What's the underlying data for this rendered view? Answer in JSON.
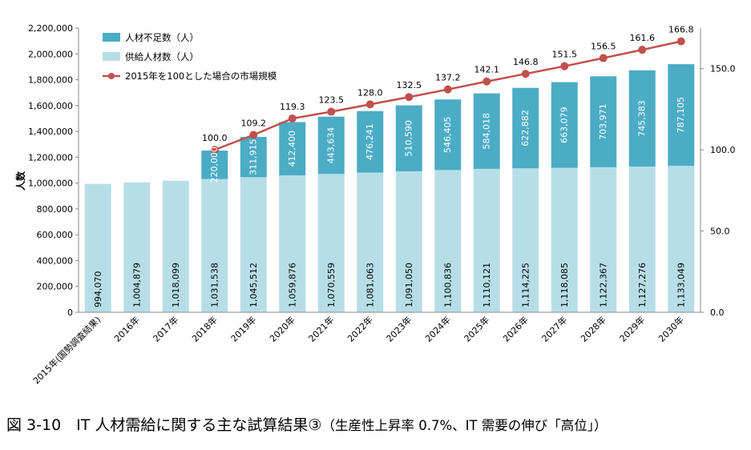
{
  "caption": {
    "main": "図 3-10　IT 人材需給に関する主な試算結果③",
    "sub": "（生産性上昇率 0.7%、IT 需要の伸び「高位」）"
  },
  "chart_data": {
    "type": "bar",
    "stacked": true,
    "categories": [
      "2015年(国勢調査結果)",
      "2016年",
      "2017年",
      "2018年",
      "2019年",
      "2020年",
      "2021年",
      "2022年",
      "2023年",
      "2024年",
      "2025年",
      "2026年",
      "2027年",
      "2028年",
      "2029年",
      "2030年"
    ],
    "ylabel": "人数",
    "ylim": [
      0,
      2200000
    ],
    "y_ticks": [
      "0",
      "200,000",
      "400,000",
      "600,000",
      "800,000",
      "1,000,000",
      "1,200,000",
      "1,400,000",
      "1,600,000",
      "1,800,000",
      "2,000,000",
      "2,200,000"
    ],
    "y2lim": [
      0,
      175
    ],
    "y2_ticks": [
      "0.0",
      "50.0",
      "100.0",
      "150.0"
    ],
    "legend_position": "top-left",
    "series": [
      {
        "name": "人材不足数（人）",
        "type": "bar",
        "color": "#4bacc6",
        "values": [
          null,
          null,
          null,
          220000,
          311915,
          412400,
          443634,
          476241,
          510590,
          546405,
          584018,
          622882,
          663079,
          703971,
          745383,
          787105
        ],
        "labels": [
          "",
          "",
          "",
          "220,000",
          "311,915",
          "412,400",
          "443,634",
          "476,241",
          "510,590",
          "546,405",
          "584,018",
          "622,882",
          "663,079",
          "703,971",
          "745,383",
          "787,105"
        ]
      },
      {
        "name": "供給人材数（人）",
        "type": "bar",
        "color": "#b7dee8",
        "values": [
          994070,
          1004879,
          1018099,
          1031538,
          1045512,
          1059876,
          1070559,
          1081063,
          1091050,
          1100836,
          1110121,
          1114225,
          1118085,
          1122367,
          1127276,
          1133049
        ],
        "labels": [
          "994,070",
          "1,004,879",
          "1,018,099",
          "1,031,538",
          "1,045,512",
          "1,059,876",
          "1,070,559",
          "1,081,063",
          "1,091,050",
          "1,100,836",
          "1,110,121",
          "1,114,225",
          "1,118,085",
          "1,122,367",
          "1,127,276",
          "1,133,049"
        ]
      },
      {
        "name": "2015年を100とした場合の市場規模",
        "type": "line",
        "axis": "right",
        "color": "#c0504d",
        "values": [
          null,
          null,
          null,
          100.0,
          109.2,
          119.3,
          123.5,
          128.0,
          132.5,
          137.2,
          142.1,
          146.8,
          151.5,
          156.5,
          161.6,
          166.8
        ],
        "labels": [
          "",
          "",
          "",
          "100.0",
          "109.2",
          "119.3",
          "123.5",
          "128.0",
          "132.5",
          "137.2",
          "142.1",
          "146.8",
          "151.5",
          "156.5",
          "161.6",
          "166.8"
        ]
      }
    ]
  }
}
